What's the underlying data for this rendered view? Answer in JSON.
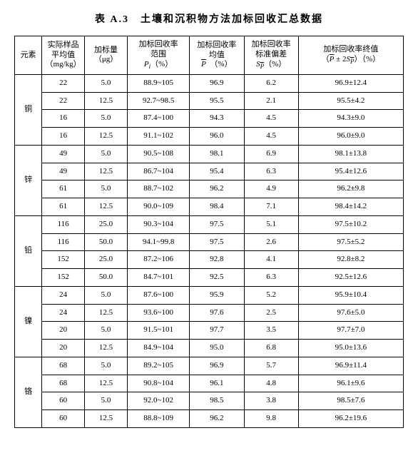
{
  "title": "表 A.3　土壤和沉积物方法加标回收汇总数据",
  "header": {
    "element": "元素",
    "sample_mean_l1": "实际样品",
    "sample_mean_l2": "平均值",
    "sample_mean_l3": "（mg/kg）",
    "spike_l1": "加标量",
    "spike_l2": "（μg）",
    "range_l1": "加标回收率",
    "range_l2": "范围",
    "range_sym": "P",
    "range_sub": "i",
    "mean_l1": "加标回收率",
    "mean_l2": "均值",
    "mean_sym": "P",
    "std_l1": "加标回收率",
    "std_l2": "标准偏差",
    "std_sym": "S",
    "std_sub": "P",
    "final_l1": "加标回收率终值",
    "final_sym1": "P",
    "final_op": " ± 2",
    "final_sym2": "S",
    "final_sub": "P",
    "pct": "（%）"
  },
  "groups": [
    {
      "elem": "铜",
      "rows": [
        {
          "mean": "22",
          "spike": "5.0",
          "range": "88.9~105",
          "meanp": "96.9",
          "std": "6.2",
          "final": "96.9±12.4"
        },
        {
          "mean": "22",
          "spike": "12.5",
          "range": "92.7~98.5",
          "meanp": "95.5",
          "std": "2.1",
          "final": "95.5±4.2"
        },
        {
          "mean": "16",
          "spike": "5.0",
          "range": "87.4~100",
          "meanp": "94.3",
          "std": "4.5",
          "final": "94.3±9.0"
        },
        {
          "mean": "16",
          "spike": "12.5",
          "range": "91.1~102",
          "meanp": "96.0",
          "std": "4.5",
          "final": "96.0±9.0"
        }
      ]
    },
    {
      "elem": "锌",
      "rows": [
        {
          "mean": "49",
          "spike": "5.0",
          "range": "90.5~108",
          "meanp": "98.1",
          "std": "6.9",
          "final": "98.1±13.8"
        },
        {
          "mean": "49",
          "spike": "12.5",
          "range": "86.7~104",
          "meanp": "95.4",
          "std": "6.3",
          "final": "95.4±12.6"
        },
        {
          "mean": "61",
          "spike": "5.0",
          "range": "88.7~102",
          "meanp": "96.2",
          "std": "4.9",
          "final": "96.2±9.8"
        },
        {
          "mean": "61",
          "spike": "12.5",
          "range": "90.0~109",
          "meanp": "98.4",
          "std": "7.1",
          "final": "98.4±14.2"
        }
      ]
    },
    {
      "elem": "铅",
      "rows": [
        {
          "mean": "116",
          "spike": "25.0",
          "range": "90.3~104",
          "meanp": "97.5",
          "std": "5.1",
          "final": "97.5±10.2"
        },
        {
          "mean": "116",
          "spike": "50.0",
          "range": "94.1~99.8",
          "meanp": "97.5",
          "std": "2.6",
          "final": "97.5±5.2"
        },
        {
          "mean": "152",
          "spike": "25.0",
          "range": "87.2~106",
          "meanp": "92.8",
          "std": "4.1",
          "final": "92.8±8.2"
        },
        {
          "mean": "152",
          "spike": "50.0",
          "range": "84.7~101",
          "meanp": "92.5",
          "std": "6.3",
          "final": "92.5±12.6"
        }
      ]
    },
    {
      "elem": "镍",
      "rows": [
        {
          "mean": "24",
          "spike": "5.0",
          "range": "87.6~100",
          "meanp": "95.9",
          "std": "5.2",
          "final": "95.9±10.4"
        },
        {
          "mean": "24",
          "spike": "12.5",
          "range": "93.6~100",
          "meanp": "97.6",
          "std": "2.5",
          "final": "97.6±5.0"
        },
        {
          "mean": "20",
          "spike": "5.0",
          "range": "91.5~101",
          "meanp": "97.7",
          "std": "3.5",
          "final": "97.7±7.0"
        },
        {
          "mean": "20",
          "spike": "12.5",
          "range": "84.9~104",
          "meanp": "95.0",
          "std": "6.8",
          "final": "95.0±13.6"
        }
      ]
    },
    {
      "elem": "铬",
      "rows": [
        {
          "mean": "68",
          "spike": "5.0",
          "range": "89.2~105",
          "meanp": "96.9",
          "std": "5.7",
          "final": "96.9±11.4"
        },
        {
          "mean": "68",
          "spike": "12.5",
          "range": "90.8~104",
          "meanp": "96.1",
          "std": "4.8",
          "final": "96.1±9.6"
        },
        {
          "mean": "60",
          "spike": "5.0",
          "range": "92.0~102",
          "meanp": "98.5",
          "std": "3.8",
          "final": "98.5±7.6"
        },
        {
          "mean": "60",
          "spike": "12.5",
          "range": "88.8~109",
          "meanp": "96.2",
          "std": "9.8",
          "final": "96.2±19.6"
        }
      ]
    }
  ]
}
